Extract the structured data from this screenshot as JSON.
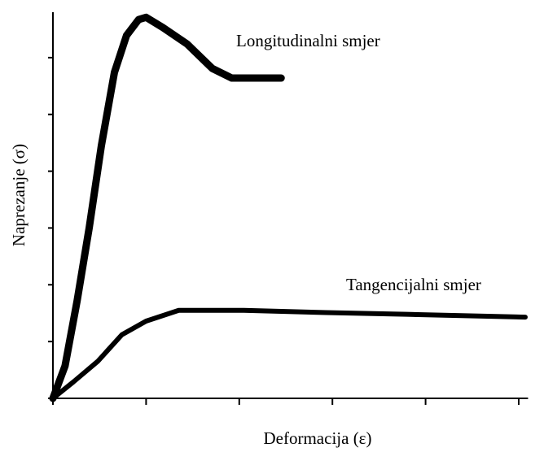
{
  "chart_data": {
    "type": "line",
    "x_label": "Deformacija (ε)",
    "y_label": "Naprezanje (σ)",
    "xlim": [
      0,
      5.1
    ],
    "ylim": [
      0,
      6.8
    ],
    "xticks": [
      0,
      1,
      2,
      3,
      4,
      5
    ],
    "yticks": [
      0,
      1,
      2,
      3,
      4,
      5,
      6
    ],
    "series": [
      {
        "name": "Longitudinalni smjer",
        "color": "#000000",
        "x": [
          0,
          0.13,
          0.26,
          0.39,
          0.52,
          0.66,
          0.79,
          0.92,
          1.0,
          1.18,
          1.44,
          1.71,
          1.92,
          2.45
        ],
        "values": [
          0,
          0.57,
          1.72,
          3.01,
          4.45,
          5.74,
          6.39,
          6.67,
          6.71,
          6.53,
          6.24,
          5.81,
          5.64,
          5.64
        ]
      },
      {
        "name": "Tangencijalni smjer",
        "color": "#000000",
        "x": [
          0,
          0.22,
          0.48,
          0.74,
          1.0,
          1.35,
          2.05,
          2.93,
          3.8,
          5.07
        ],
        "values": [
          0,
          0.29,
          0.65,
          1.12,
          1.36,
          1.55,
          1.55,
          1.51,
          1.48,
          1.43
        ]
      }
    ]
  }
}
